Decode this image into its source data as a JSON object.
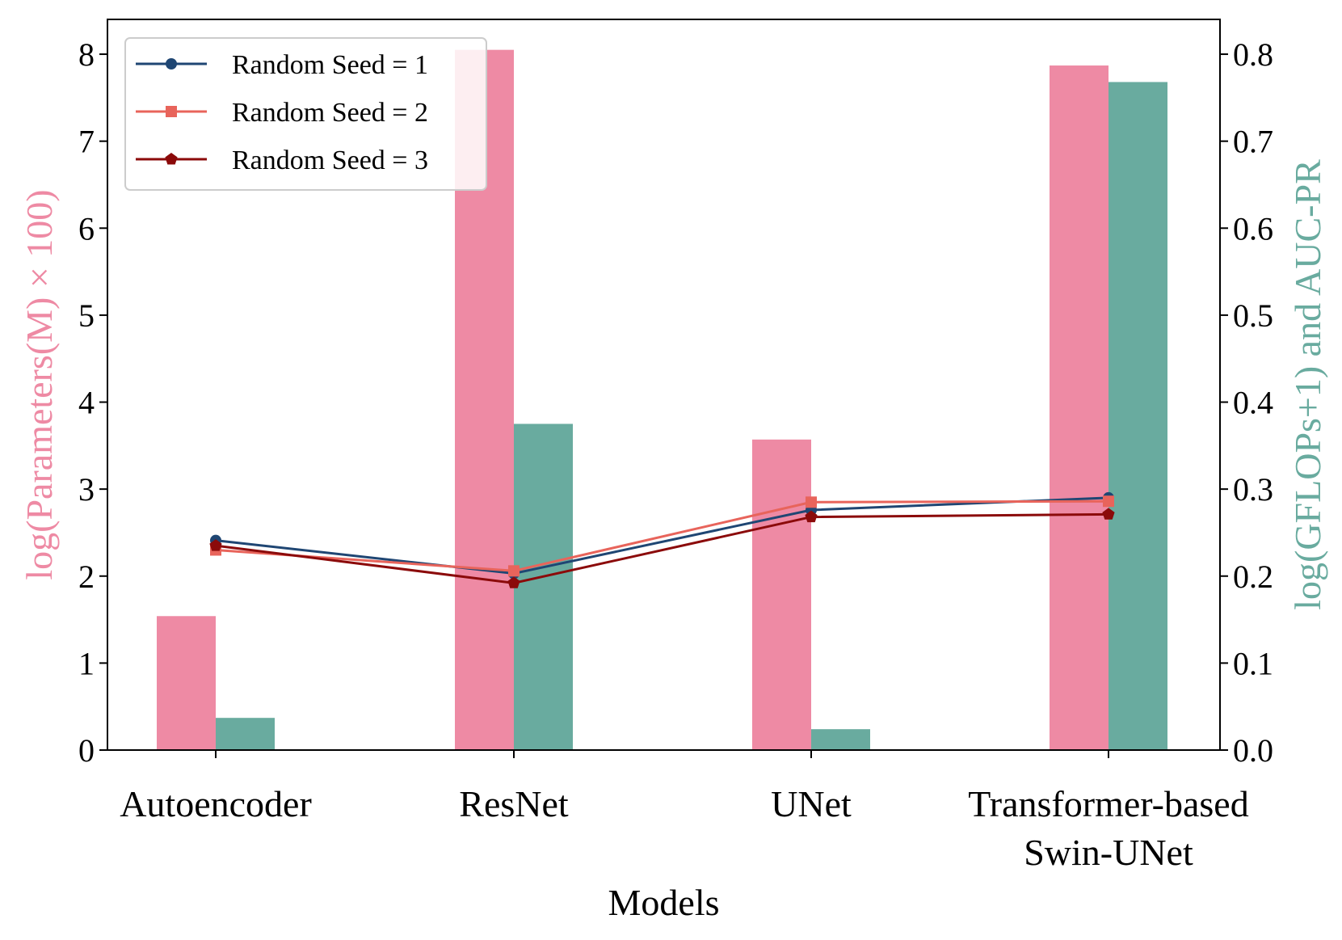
{
  "chart_data": {
    "type": "bar",
    "xlabel": "Models",
    "ylabel_left": "log(Parameters(M) × 100)",
    "ylabel_right": "log(GFLOPs+1) and AUC-PR",
    "categories": [
      {
        "line1": "Autoencoder",
        "line2": ""
      },
      {
        "line1": "ResNet",
        "line2": ""
      },
      {
        "line1": "UNet",
        "line2": ""
      },
      {
        "line1": "Transformer-based",
        "line2": "Swin-UNet"
      }
    ],
    "ylim_left": [
      0,
      8.4
    ],
    "ylim_right": [
      0,
      0.84
    ],
    "yticks_left": [
      "0",
      "1",
      "2",
      "3",
      "4",
      "5",
      "6",
      "7",
      "8"
    ],
    "yticks_right": [
      "0.0",
      "0.1",
      "0.2",
      "0.3",
      "0.4",
      "0.5",
      "0.6",
      "0.7",
      "0.8"
    ],
    "bars": [
      {
        "name": "log(Parameters(M) × 100)",
        "axis": "left",
        "color": "#ee8aa4",
        "values": [
          1.54,
          8.05,
          3.57,
          7.87
        ]
      },
      {
        "name": "log(GFLOPs+1)",
        "axis": "right",
        "color": "#69ab9f",
        "values": [
          0.037,
          0.375,
          0.024,
          0.768
        ]
      }
    ],
    "lines": [
      {
        "name": "Random Seed = 1",
        "axis": "right",
        "color": "#1f4673",
        "marker": "circle",
        "values": [
          0.241,
          0.203,
          0.276,
          0.29
        ]
      },
      {
        "name": "Random Seed = 2",
        "axis": "right",
        "color": "#e8645b",
        "marker": "square",
        "values": [
          0.23,
          0.206,
          0.285,
          0.286
        ]
      },
      {
        "name": "Random Seed = 3",
        "axis": "right",
        "color": "#8b0a0a",
        "marker": "pentagon",
        "values": [
          0.235,
          0.192,
          0.268,
          0.271
        ]
      }
    ],
    "legend_position": "top-left",
    "grid": false
  }
}
